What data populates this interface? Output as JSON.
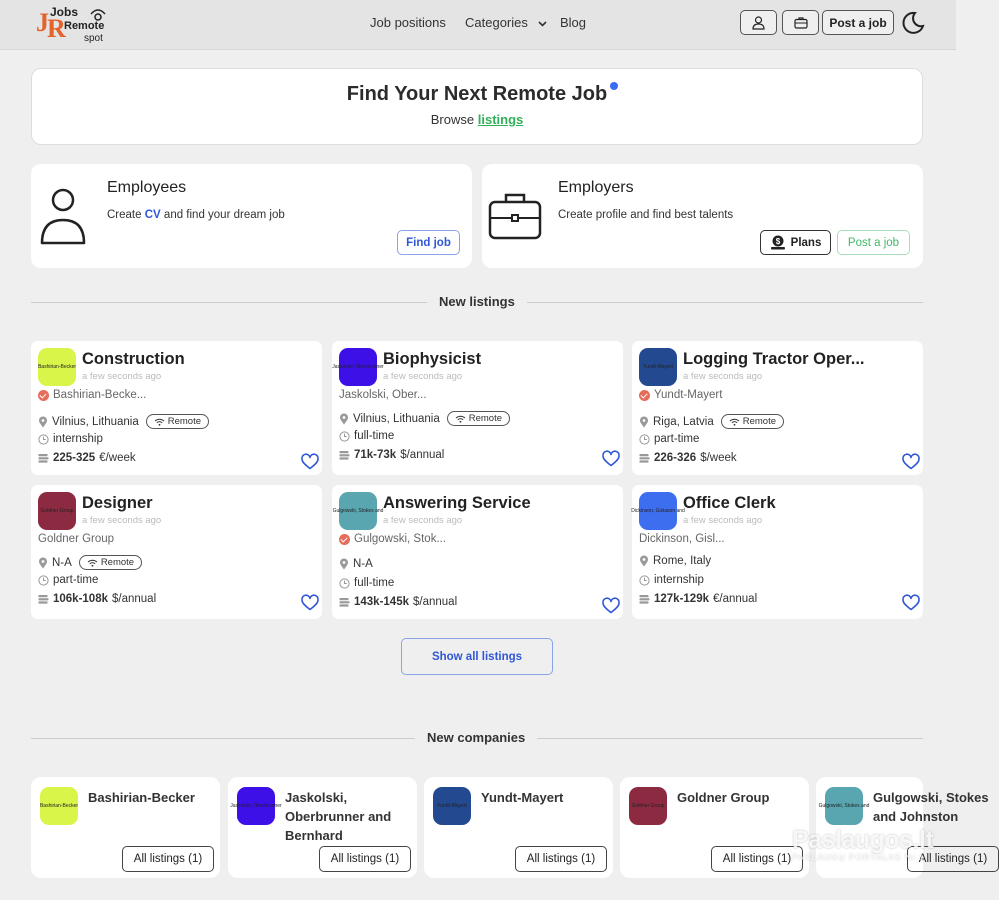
{
  "brand": {
    "logo_text": "JobsRemote spot"
  },
  "nav": {
    "job_positions": "Job positions",
    "categories": "Categories",
    "blog": "Blog",
    "post_job": "Post a job"
  },
  "hero": {
    "title": "Find Your Next Remote Job",
    "browse": "Browse",
    "listings_link": "listings"
  },
  "employees": {
    "title": "Employees",
    "desc_pre": "Create",
    "desc_cv": "CV",
    "desc_post": "and find your dream job",
    "button": "Find job"
  },
  "employers": {
    "title": "Employers",
    "desc": "Create profile and find best talents",
    "plans_button": "Plans",
    "post_button": "Post a job"
  },
  "sections": {
    "new_listings": "New listings",
    "new_companies": "New companies",
    "show_all": "Show all listings"
  },
  "jobs": [
    {
      "title": "Construction",
      "ago": "a few seconds ago",
      "company": "Bashirian-Becke...",
      "verified": true,
      "location": "Vilnius, Lithuania",
      "remote": "Remote",
      "type": "internship",
      "salary": "225-325",
      "salary_unit": "€/week",
      "logo_text": "Bashirian-Becker",
      "logo_color": "#d9f54a"
    },
    {
      "title": "Biophysicist",
      "ago": "a few seconds ago",
      "company": "Jaskolski, Ober...",
      "verified": false,
      "location": "Vilnius, Lithuania",
      "remote": "Remote",
      "type": "full-time",
      "salary": "71k-73k",
      "salary_unit": "$/annual",
      "logo_text": "Jaskolski, Oberbrunner",
      "logo_color": "#3d10e8"
    },
    {
      "title": "Logging Tractor Oper...",
      "ago": "a few seconds ago",
      "company": "Yundt-Mayert",
      "verified": true,
      "location": "Riga, Latvia",
      "remote": "Remote",
      "type": "part-time",
      "salary": "226-326",
      "salary_unit": "$/week",
      "logo_text": "Yundt-Mayert",
      "logo_color": "#234a91"
    },
    {
      "title": "Designer",
      "ago": "a few seconds ago",
      "company": "Goldner Group",
      "verified": false,
      "location": "N-A",
      "remote": "Remote",
      "type": "part-time",
      "salary": "106k-108k",
      "salary_unit": "$/annual",
      "logo_text": "Goldner Group",
      "logo_color": "#8c2a42"
    },
    {
      "title": "Answering Service",
      "ago": "a few seconds ago",
      "company": "Gulgowski, Stok...",
      "verified": true,
      "location": "N-A",
      "remote": "",
      "type": "full-time",
      "salary": "143k-145k",
      "salary_unit": "$/annual",
      "logo_text": "Gulgowski, Stokes and",
      "logo_color": "#5aa6b0"
    },
    {
      "title": "Office Clerk",
      "ago": "a few seconds ago",
      "company": "Dickinson, Gisl...",
      "verified": false,
      "location": "Rome, Italy",
      "remote": "",
      "type": "internship",
      "salary": "127k-129k",
      "salary_unit": "€/annual",
      "logo_text": "Dickinson, Gislason and",
      "logo_color": "#3e6ef0"
    }
  ],
  "companies": [
    {
      "name": "Bashirian-Becker",
      "listings": "All listings (1)",
      "logo_text": "Bashirian-Becker",
      "logo_color": "#d9f54a"
    },
    {
      "name": "Jaskolski, Oberbrunner and Bernhard",
      "listings": "All listings (1)",
      "logo_text": "Jaskolski, Oberbrunner",
      "logo_color": "#3d10e8"
    },
    {
      "name": "Yundt-Mayert",
      "listings": "All listings (1)",
      "logo_text": "Yundt-Mayert",
      "logo_color": "#234a91"
    },
    {
      "name": "Goldner Group",
      "listings": "All listings (1)",
      "logo_text": "Goldner Group",
      "logo_color": "#8c2a42"
    },
    {
      "name": "Gulgowski, Stokes and Johnston",
      "listings": "All listings (1)",
      "logo_text": "Gulgowski, Stokes and",
      "logo_color": "#5aa6b0"
    }
  ],
  "watermark": {
    "big": "Paslaugos.lt",
    "small": "PASLAUGŲ PORTALAS  Nr.1"
  },
  "icons": {
    "user": "user-icon",
    "briefcase": "briefcase-icon",
    "moon": "moon-icon",
    "pin": "location-pin-icon",
    "clock": "clock-icon",
    "money": "money-icon",
    "wifi": "wifi-icon",
    "heart": "heart-icon"
  }
}
